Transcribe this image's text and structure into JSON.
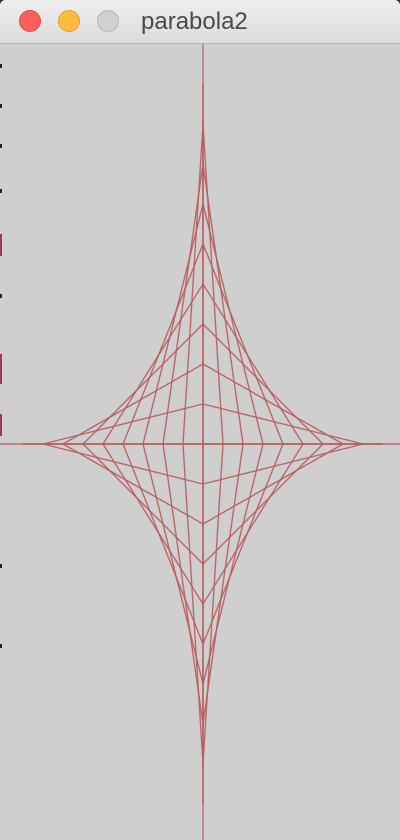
{
  "window": {
    "title": "parabola2"
  },
  "colors": {
    "canvas_background": "#cfcfcf",
    "stroke": "#b85c5c",
    "close_button": "#fc605b",
    "minimize_button": "#fdbc40",
    "zoom_button": "#d0d0d0"
  },
  "sketch": {
    "steps_per_quadrant": 9,
    "vertical_extent": 360,
    "horizontal_extent": 180
  }
}
